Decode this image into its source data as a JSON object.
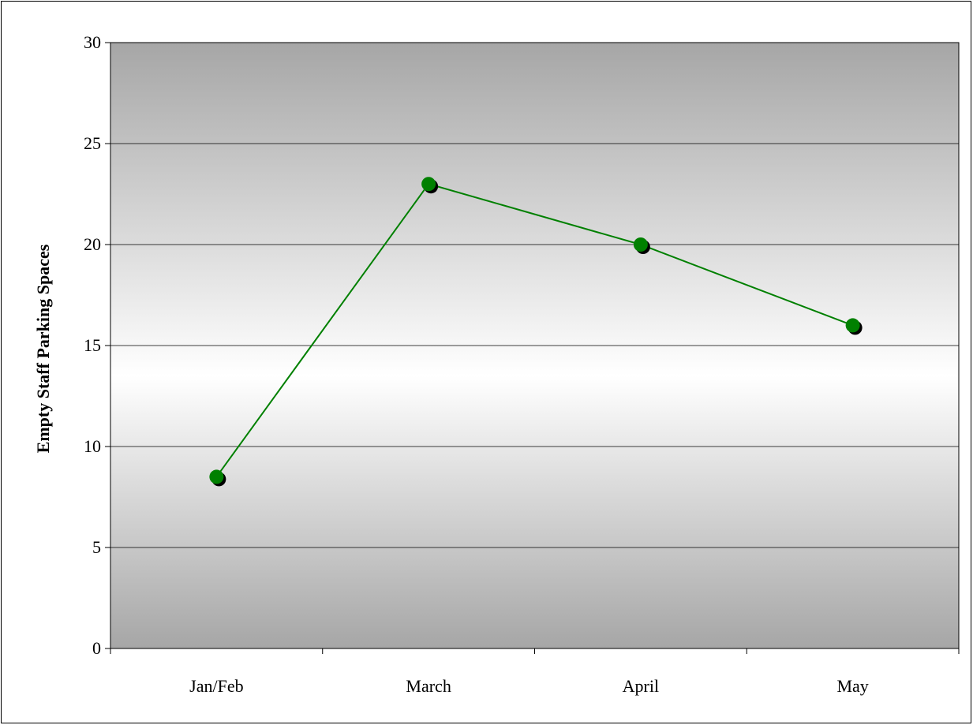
{
  "chart_data": {
    "type": "line",
    "title": "",
    "xlabel": "",
    "ylabel": "Empty Staff Parking Spaces",
    "categories": [
      "Jan/Feb",
      "March",
      "April",
      "May"
    ],
    "series": [
      {
        "values": [
          8.5,
          23,
          20,
          16
        ]
      }
    ],
    "ylim": [
      0,
      30
    ],
    "yticks": [
      0,
      5,
      10,
      15,
      20,
      25,
      30
    ],
    "grid": true,
    "legend": "none",
    "colors": {
      "line": "#008000",
      "marker": "#008000",
      "marker_shadow": "#000000",
      "plot_edge": "#a6a6a6",
      "plot_center": "#ffffff"
    }
  }
}
